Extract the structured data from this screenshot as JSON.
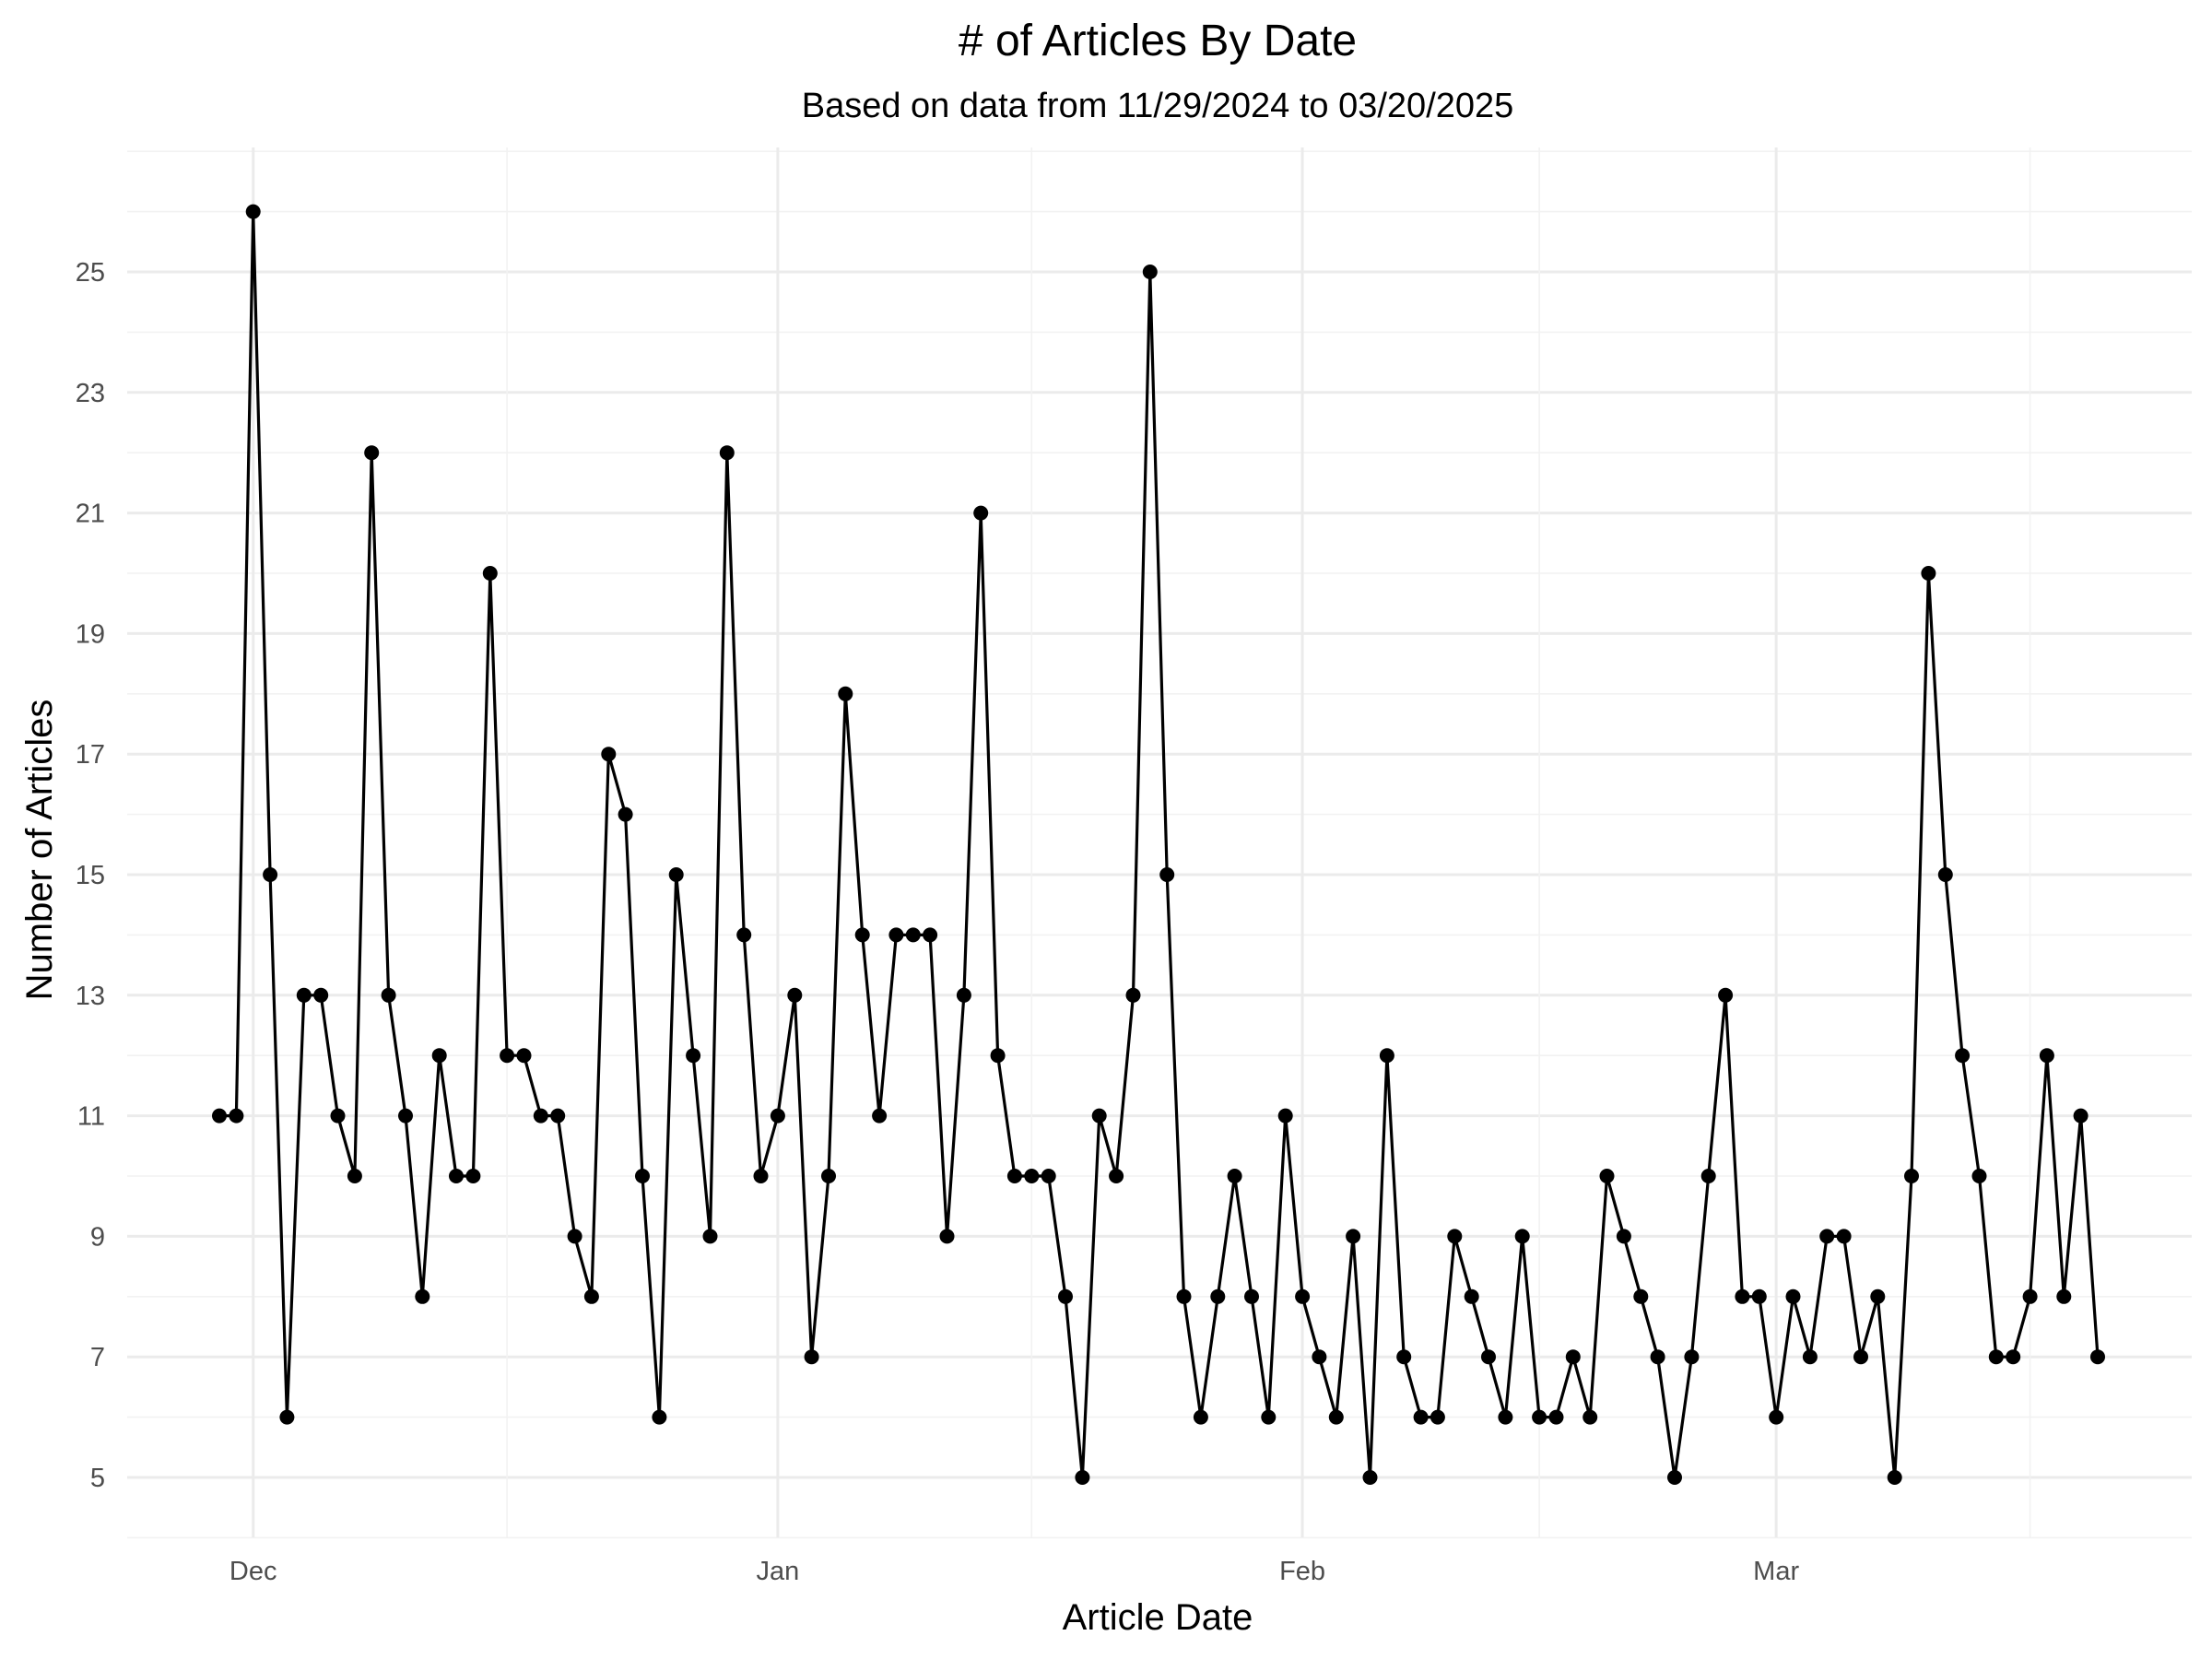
{
  "chart_data": {
    "type": "line",
    "title": "# of Articles By Date",
    "subtitle": "Based on data from 11/29/2024 to 03/20/2025",
    "xlabel": "Article Date",
    "ylabel": "Number of Articles",
    "x_start": "2024-11-29",
    "x_end": "2025-03-20",
    "x_ticks": [
      {
        "date": "2024-12-01",
        "label": "Dec"
      },
      {
        "date": "2025-01-01",
        "label": "Jan"
      },
      {
        "date": "2025-02-01",
        "label": "Feb"
      },
      {
        "date": "2025-03-01",
        "label": "Mar"
      }
    ],
    "x_minor_ticks": [
      "2024-12-16",
      "2025-01-16",
      "2025-02-15",
      "2025-03-16"
    ],
    "y_ticks": [
      5,
      7,
      9,
      11,
      13,
      15,
      17,
      19,
      21,
      23,
      25
    ],
    "ylim": [
      4,
      27
    ],
    "grid": true,
    "point_color": "#000000",
    "line_color": "#000000",
    "values": [
      11,
      11,
      26,
      15,
      6,
      13,
      13,
      11,
      10,
      22,
      13,
      11,
      8,
      12,
      10,
      10,
      20,
      12,
      12,
      11,
      11,
      9,
      8,
      17,
      16,
      10,
      6,
      15,
      12,
      9,
      22,
      14,
      10,
      11,
      13,
      7,
      10,
      18,
      14,
      11,
      14,
      14,
      14,
      9,
      13,
      21,
      12,
      10,
      10,
      10,
      8,
      5,
      11,
      10,
      13,
      25,
      15,
      8,
      6,
      8,
      10,
      8,
      6,
      11,
      8,
      7,
      6,
      9,
      5,
      12,
      7,
      6,
      6,
      9,
      8,
      7,
      6,
      9,
      6,
      6,
      7,
      6,
      10,
      9,
      8,
      7,
      5,
      7,
      10,
      13,
      8,
      8,
      6,
      8,
      7,
      9,
      9,
      7,
      8,
      5,
      10,
      20,
      15,
      12,
      10,
      7,
      7,
      8,
      12,
      8,
      11,
      7
    ]
  }
}
